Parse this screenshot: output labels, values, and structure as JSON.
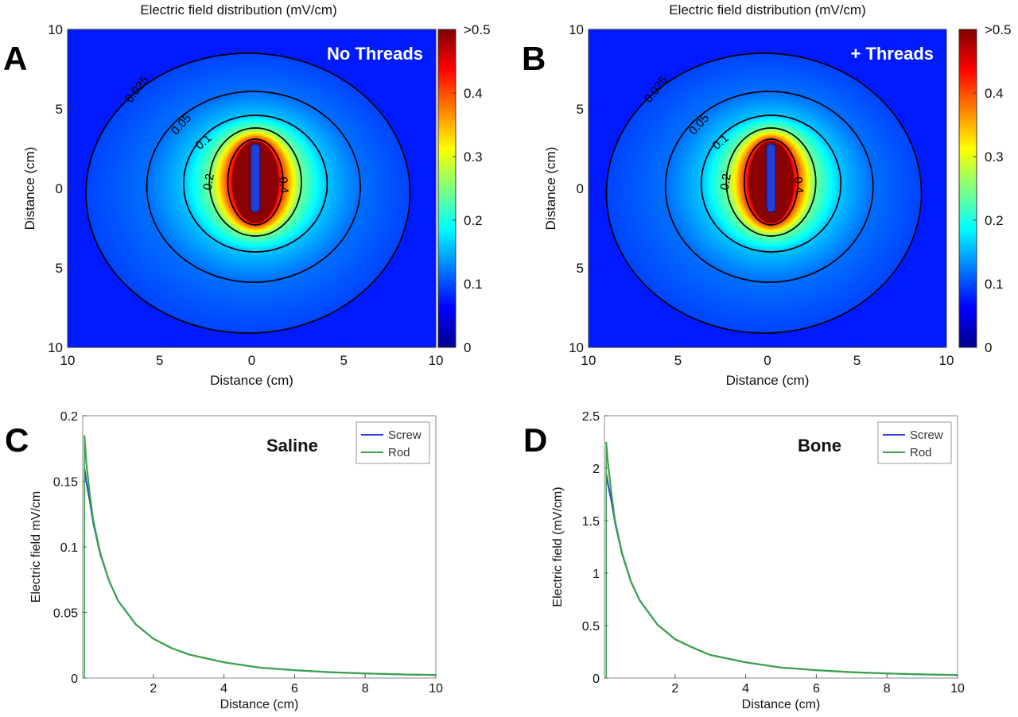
{
  "chart_data": [
    {
      "panel": "A",
      "type": "heatmap",
      "title": "Electric field distribution (mV/cm)",
      "inset_label": "No Threads",
      "xlabel": "Distance (cm)",
      "ylabel": "Distance (cm)",
      "x_ticks": [
        "10",
        "5",
        "0",
        "5",
        "10"
      ],
      "y_ticks": [
        "10",
        "5",
        "0",
        "5",
        "10"
      ],
      "xlim": [
        -10,
        10
      ],
      "ylim": [
        -10,
        10
      ],
      "colorbar": {
        "ticks": [
          "0",
          "0.1",
          "0.2",
          "0.3",
          "0.4",
          ">0.5"
        ],
        "range": [
          0,
          0.5
        ]
      },
      "contour_labels": [
        "0.025",
        "0.05",
        "0.1",
        "0.2",
        "0.4"
      ],
      "contours": [
        {
          "level": 0.025,
          "center": [
            -0.2,
            -0.3
          ],
          "semi_axes": [
            8.8,
            8.8
          ]
        },
        {
          "level": 0.05,
          "center": [
            0.1,
            0.1
          ],
          "semi_axes": [
            5.8,
            6.0
          ]
        },
        {
          "level": 0.1,
          "center": [
            0.2,
            0.3
          ],
          "semi_axes": [
            3.9,
            4.3
          ]
        },
        {
          "level": 0.2,
          "center": [
            0.2,
            0.4
          ],
          "semi_axes": [
            2.5,
            3.4
          ]
        },
        {
          "level": 0.4,
          "center": [
            0.2,
            0.4
          ],
          "semi_axes": [
            1.5,
            2.7
          ]
        }
      ],
      "electrode": {
        "x": 0.2,
        "y_range": [
          -1.5,
          2.8
        ],
        "width": 0.5
      }
    },
    {
      "panel": "B",
      "type": "heatmap",
      "title": "Electric field distribution (mV/cm)",
      "inset_label": "+ Threads",
      "xlabel": "Distance (cm)",
      "ylabel": "Distance (cm)",
      "x_ticks": [
        "10",
        "5",
        "0",
        "5",
        "10"
      ],
      "y_ticks": [
        "10",
        "5",
        "0",
        "5",
        "10"
      ],
      "xlim": [
        -10,
        10
      ],
      "ylim": [
        -10,
        10
      ],
      "colorbar": {
        "ticks": [
          "0",
          "0.1",
          "0.2",
          "0.3",
          "0.4",
          ">0.5"
        ],
        "range": [
          0,
          0.5
        ]
      },
      "contour_labels": [
        "0.025",
        "0.05",
        "0.1",
        "0.2",
        "0.4"
      ],
      "contours": [
        {
          "level": 0.025,
          "center": [
            -0.2,
            -0.3
          ],
          "semi_axes": [
            8.8,
            8.8
          ]
        },
        {
          "level": 0.05,
          "center": [
            0.1,
            0.1
          ],
          "semi_axes": [
            5.8,
            6.0
          ]
        },
        {
          "level": 0.1,
          "center": [
            0.2,
            0.3
          ],
          "semi_axes": [
            3.9,
            4.3
          ]
        },
        {
          "level": 0.2,
          "center": [
            0.2,
            0.4
          ],
          "semi_axes": [
            2.5,
            3.4
          ]
        },
        {
          "level": 0.4,
          "center": [
            0.2,
            0.4
          ],
          "semi_axes": [
            1.5,
            2.7
          ]
        }
      ],
      "electrode": {
        "x": 0.2,
        "y_range": [
          -1.5,
          2.8
        ],
        "width": 0.5
      }
    },
    {
      "panel": "C",
      "type": "line",
      "medium_label": "Saline",
      "xlabel": "Distance (cm)",
      "ylabel": "Electric field mV/cm",
      "xlim": [
        0,
        10
      ],
      "ylim": [
        0,
        0.2
      ],
      "x_ticks": [
        "2",
        "4",
        "6",
        "8",
        "10"
      ],
      "y_ticks": [
        "0",
        "0.05",
        "0.1",
        "0.15",
        "0.2"
      ],
      "legend_position": "top-right",
      "x": [
        0.05,
        0.1,
        0.2,
        0.3,
        0.5,
        0.75,
        1,
        1.5,
        2,
        2.5,
        3,
        4,
        5,
        6,
        7,
        8,
        9,
        10
      ],
      "series": [
        {
          "name": "Screw",
          "color": "#2b3fd6",
          "values": [
            0.16,
            0.15,
            0.135,
            0.118,
            0.094,
            0.074,
            0.059,
            0.041,
            0.03,
            0.023,
            0.018,
            0.012,
            0.008,
            0.006,
            0.0045,
            0.0035,
            0.0028,
            0.0023
          ]
        },
        {
          "name": "Rod",
          "color": "#3aa34a",
          "values": [
            0.185,
            0.165,
            0.14,
            0.12,
            0.095,
            0.074,
            0.059,
            0.041,
            0.03,
            0.023,
            0.018,
            0.012,
            0.008,
            0.006,
            0.0045,
            0.0035,
            0.0028,
            0.0023
          ]
        }
      ]
    },
    {
      "panel": "D",
      "type": "line",
      "medium_label": "Bone",
      "xlabel": "Distance (cm)",
      "ylabel": "Electric field (mV/cm)",
      "xlim": [
        0,
        10
      ],
      "ylim": [
        0,
        2.5
      ],
      "x_ticks": [
        "2",
        "4",
        "6",
        "8",
        "10"
      ],
      "y_ticks": [
        "0",
        "0.5",
        "1",
        "1.5",
        "2",
        "2.5"
      ],
      "legend_position": "top-right",
      "x": [
        0.05,
        0.1,
        0.2,
        0.3,
        0.5,
        0.75,
        1,
        1.5,
        2,
        2.5,
        3,
        4,
        5,
        6,
        7,
        8,
        9,
        10
      ],
      "series": [
        {
          "name": "Screw",
          "color": "#2b3fd6",
          "values": [
            1.95,
            1.85,
            1.68,
            1.48,
            1.18,
            0.92,
            0.74,
            0.51,
            0.37,
            0.29,
            0.22,
            0.15,
            0.1,
            0.075,
            0.056,
            0.044,
            0.035,
            0.029
          ]
        },
        {
          "name": "Rod",
          "color": "#3aa34a",
          "values": [
            2.25,
            2.05,
            1.75,
            1.5,
            1.19,
            0.92,
            0.74,
            0.51,
            0.37,
            0.29,
            0.22,
            0.15,
            0.1,
            0.075,
            0.056,
            0.044,
            0.035,
            0.029
          ]
        }
      ]
    }
  ]
}
